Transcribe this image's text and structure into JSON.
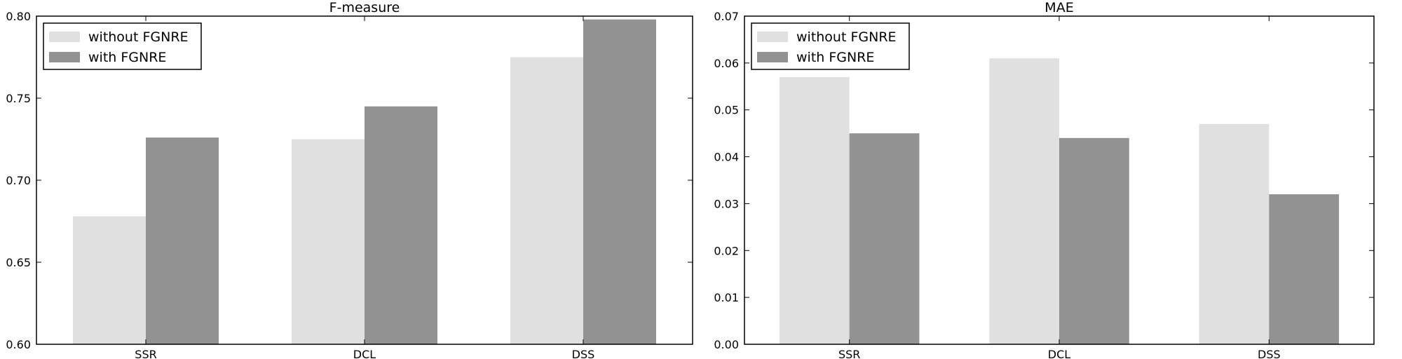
{
  "chart_data": [
    {
      "type": "bar",
      "title": "F-measure",
      "categories": [
        "SSR",
        "DCL",
        "DSS"
      ],
      "series": [
        {
          "name": "without FGNRE",
          "color": "#e0e0e0",
          "values": [
            0.678,
            0.725,
            0.775
          ]
        },
        {
          "name": "with FGNRE",
          "color": "#929292",
          "values": [
            0.726,
            0.745,
            0.798
          ]
        }
      ],
      "ylim": [
        0.6,
        0.8
      ],
      "yticks": [
        "0.60",
        "0.65",
        "0.70",
        "0.75",
        "0.80"
      ],
      "legend_position": "top-left",
      "grid": false
    },
    {
      "type": "bar",
      "title": "MAE",
      "categories": [
        "SSR",
        "DCL",
        "DSS"
      ],
      "series": [
        {
          "name": "without FGNRE",
          "color": "#e0e0e0",
          "values": [
            0.057,
            0.061,
            0.047
          ]
        },
        {
          "name": "with FGNRE",
          "color": "#929292",
          "values": [
            0.045,
            0.044,
            0.032
          ]
        }
      ],
      "ylim": [
        0,
        0.07
      ],
      "yticks": [
        "0.00",
        "0.01",
        "0.02",
        "0.03",
        "0.04",
        "0.05",
        "0.06",
        "0.07"
      ],
      "legend_position": "top-left",
      "grid": false
    }
  ]
}
